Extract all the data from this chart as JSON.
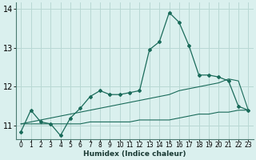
{
  "xlabel": "Humidex (Indice chaleur)",
  "bg_color": "#daf0ee",
  "grid_color": "#b8d8d4",
  "line_color": "#1a6b5a",
  "xlim": [
    -0.5,
    23.5
  ],
  "ylim": [
    10.65,
    14.15
  ],
  "yticks": [
    11,
    12,
    13,
    14
  ],
  "xticks": [
    0,
    1,
    2,
    3,
    4,
    5,
    6,
    7,
    8,
    9,
    10,
    11,
    12,
    13,
    14,
    15,
    16,
    17,
    18,
    19,
    20,
    21,
    22,
    23
  ],
  "series1_x": [
    0,
    1,
    2,
    3,
    4,
    5,
    6,
    7,
    8,
    9,
    10,
    11,
    12,
    13,
    14,
    15,
    16,
    17,
    18,
    19,
    20,
    21,
    22,
    23
  ],
  "series1_y": [
    10.85,
    11.4,
    11.1,
    11.05,
    10.75,
    11.2,
    11.45,
    11.75,
    11.9,
    11.8,
    11.8,
    11.85,
    11.9,
    12.95,
    13.15,
    13.9,
    13.65,
    13.05,
    12.3,
    12.3,
    12.25,
    12.15,
    11.5,
    11.4
  ],
  "series2_x": [
    0,
    1,
    2,
    3,
    4,
    5,
    6,
    7,
    8,
    9,
    10,
    11,
    12,
    13,
    14,
    15,
    16,
    17,
    18,
    19,
    20,
    21,
    22,
    23
  ],
  "series2_y": [
    11.05,
    11.1,
    11.15,
    11.2,
    11.25,
    11.3,
    11.35,
    11.4,
    11.45,
    11.5,
    11.55,
    11.6,
    11.65,
    11.7,
    11.75,
    11.8,
    11.9,
    11.95,
    12.0,
    12.05,
    12.1,
    12.2,
    12.15,
    11.4
  ],
  "series3_x": [
    0,
    1,
    2,
    3,
    4,
    5,
    6,
    7,
    8,
    9,
    10,
    11,
    12,
    13,
    14,
    15,
    16,
    17,
    18,
    19,
    20,
    21,
    22,
    23
  ],
  "series3_y": [
    11.05,
    11.05,
    11.05,
    11.05,
    11.05,
    11.05,
    11.05,
    11.1,
    11.1,
    11.1,
    11.1,
    11.1,
    11.15,
    11.15,
    11.15,
    11.15,
    11.2,
    11.25,
    11.3,
    11.3,
    11.35,
    11.35,
    11.4,
    11.4
  ]
}
